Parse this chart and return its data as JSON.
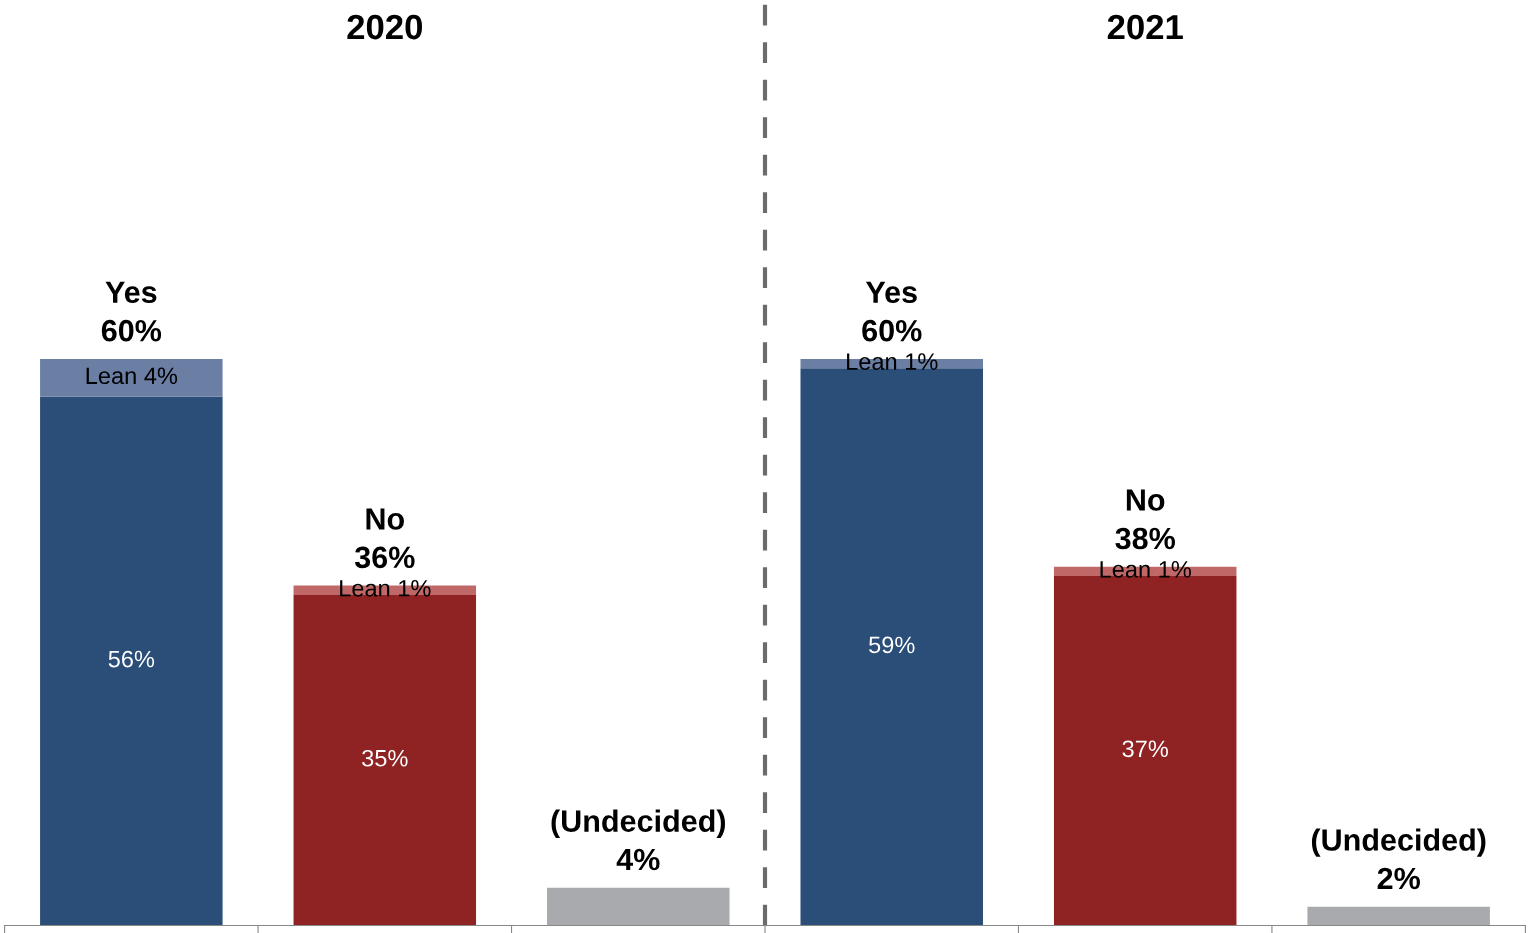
{
  "chart_data": {
    "type": "bar",
    "stacked": true,
    "categories": [
      null,
      null,
      null,
      null,
      null,
      null
    ],
    "series": [
      {
        "colors": [
          "#2a4e78",
          "#8f2222",
          "#a9aaae",
          "#2a4e78",
          "#8f2222",
          "#a9aaae"
        ],
        "values": [
          56,
          35,
          4,
          59,
          37,
          2
        ],
        "value_labels": [
          "56%",
          "35%",
          null,
          "59%",
          "37%",
          null
        ]
      },
      {
        "colors": [
          "#6a7fa3",
          "#c06868",
          null,
          "#6a7fa3",
          "#c06868",
          null
        ],
        "values": [
          4,
          1,
          null,
          1,
          1,
          null
        ],
        "value_labels": [
          "Lean 4%",
          "Lean 1%",
          null,
          "Lean 1%",
          "Lean 1%",
          null
        ]
      }
    ],
    "totals": [
      "Yes\n60%",
      "No\n36%",
      "(Undecided)\n4%",
      "Yes\n60%",
      "No\n38%",
      "(Undecided)\n2%"
    ],
    "annotations": [
      "2020",
      "2021"
    ],
    "ylim": [
      0,
      98
    ],
    "grid": false,
    "legend": false
  }
}
